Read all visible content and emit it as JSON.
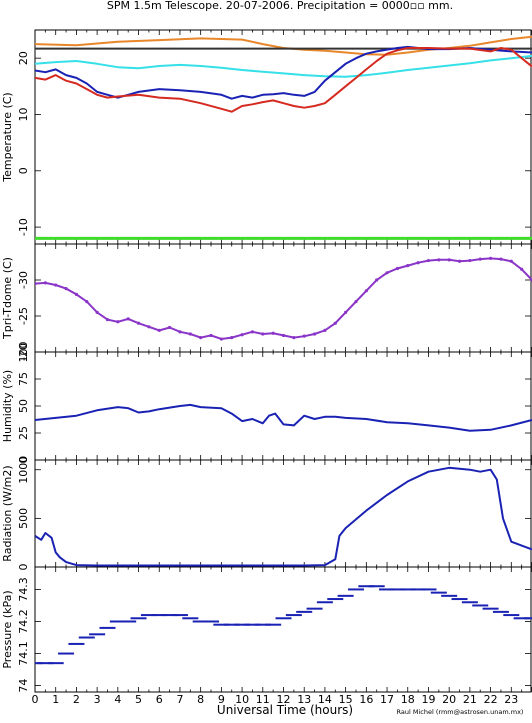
{
  "title": "SPM 1.5m Telescope. 20-07-2006. Precipitation = 0000▫▫ mm.",
  "credit": "Raul Michel (rmm@astrosen.unam.mx)",
  "colors": {
    "orange": "#e8862a",
    "black": "#333333",
    "cyan": "#35e0e8",
    "blue": "#1a22b4",
    "red": "#d52a20",
    "green": "#3fdc2c",
    "purple": "#8a35c8"
  },
  "chart_data": [
    {
      "type": "line",
      "ylabel": "Temperature (C)",
      "xlim": [
        0,
        24
      ],
      "ylim": [
        -13,
        25
      ],
      "yticks": [
        -10,
        0,
        10,
        20
      ],
      "series": [
        {
          "color": "#e8862a",
          "x": [
            0,
            2,
            4,
            6,
            8,
            10,
            11,
            12,
            13,
            14,
            15,
            16,
            17,
            18,
            19,
            20,
            21,
            22,
            23,
            24
          ],
          "y": [
            22.5,
            22.3,
            22.9,
            23.2,
            23.5,
            23.3,
            22.5,
            21.8,
            21.5,
            21.3,
            21.0,
            20.7,
            20.6,
            21.0,
            21.5,
            21.8,
            22.2,
            22.8,
            23.4,
            23.8
          ]
        },
        {
          "color": "#333333",
          "x": [
            0,
            24
          ],
          "y": [
            21.7,
            21.7
          ]
        },
        {
          "color": "#35e0e8",
          "x": [
            0,
            1,
            2,
            3,
            4,
            5,
            6,
            7,
            8,
            9,
            10,
            11,
            12,
            13,
            14,
            15,
            16,
            17,
            18,
            19,
            20,
            21,
            22,
            23,
            24
          ],
          "y": [
            19.0,
            19.3,
            19.5,
            19.0,
            18.4,
            18.2,
            18.6,
            18.8,
            18.6,
            18.3,
            17.9,
            17.6,
            17.3,
            17.0,
            16.8,
            16.7,
            17.0,
            17.4,
            17.9,
            18.3,
            18.7,
            19.1,
            19.6,
            20.0,
            20.4
          ]
        },
        {
          "color": "#1a22b4",
          "x": [
            0,
            0.5,
            1,
            1.5,
            2,
            2.5,
            3,
            3.5,
            4,
            4.5,
            5,
            6,
            7,
            8,
            9,
            9.5,
            10,
            10.5,
            11,
            11.5,
            12,
            12.5,
            13,
            13.5,
            14,
            14.5,
            15,
            15.5,
            16,
            16.5,
            17,
            17.5,
            18,
            19,
            20,
            21,
            22,
            23,
            24
          ],
          "y": [
            17.8,
            17.5,
            18.0,
            17.0,
            16.5,
            15.5,
            14.0,
            13.5,
            13.0,
            13.5,
            14.0,
            14.5,
            14.3,
            14.0,
            13.5,
            12.8,
            13.3,
            13.0,
            13.5,
            13.6,
            13.8,
            13.5,
            13.3,
            14.0,
            16.0,
            17.5,
            19.0,
            20.0,
            20.8,
            21.2,
            21.5,
            21.8,
            22.0,
            21.6,
            21.6,
            21.8,
            21.5,
            21.2,
            21.0
          ]
        },
        {
          "color": "#d52a20",
          "x": [
            0,
            0.5,
            1,
            1.5,
            2,
            2.5,
            3,
            3.5,
            4,
            5,
            6,
            7,
            8,
            9,
            9.5,
            10,
            10.5,
            11,
            11.5,
            12,
            12.5,
            13,
            13.5,
            14,
            14.5,
            15,
            15.5,
            16,
            16.5,
            17,
            17.5,
            18,
            19,
            20,
            21,
            22,
            22.5,
            23,
            24
          ],
          "y": [
            16.5,
            16.2,
            17.0,
            16.0,
            15.5,
            14.5,
            13.5,
            13.0,
            13.2,
            13.5,
            13.0,
            12.8,
            12.0,
            11.0,
            10.5,
            11.5,
            11.8,
            12.2,
            12.5,
            12.0,
            11.5,
            11.2,
            11.5,
            12.0,
            13.5,
            15.0,
            16.5,
            18.0,
            19.5,
            20.8,
            21.4,
            21.8,
            21.8,
            21.7,
            21.7,
            21.2,
            21.8,
            21.5,
            18.5
          ]
        },
        {
          "color": "#3fdc2c",
          "x": [
            0,
            24
          ],
          "y": [
            -12.0,
            -12.0
          ]
        }
      ]
    },
    {
      "type": "scatter",
      "ylabel": "Tpri-Tdome (C)",
      "xlim": [
        0,
        24
      ],
      "ylim": [
        -20,
        -35
      ],
      "yticks": [
        -20,
        -25,
        -30
      ],
      "series": [
        {
          "color": "#8a35c8",
          "x": [
            0,
            0.5,
            1,
            1.5,
            2,
            2.5,
            3,
            3.5,
            4,
            4.5,
            5,
            5.5,
            6,
            6.5,
            7,
            7.5,
            8,
            8.5,
            9,
            9.5,
            10,
            10.5,
            11,
            11.5,
            12,
            12.5,
            13,
            13.5,
            14,
            14.5,
            15,
            15.5,
            16,
            16.5,
            17,
            17.5,
            18,
            18.5,
            19,
            19.5,
            20,
            20.5,
            21,
            21.5,
            22,
            22.5,
            23,
            23.5,
            24
          ],
          "y": [
            -29.5,
            -29.6,
            -29.3,
            -28.8,
            -28.0,
            -27.0,
            -25.5,
            -24.5,
            -24.2,
            -24.6,
            -24.0,
            -23.5,
            -23.0,
            -23.4,
            -22.8,
            -22.5,
            -22.0,
            -22.3,
            -21.8,
            -22.0,
            -22.4,
            -22.8,
            -22.5,
            -22.6,
            -22.3,
            -22.0,
            -22.2,
            -22.5,
            -23.0,
            -24.0,
            -25.5,
            -27.0,
            -28.5,
            -30.0,
            -31.0,
            -31.6,
            -32.0,
            -32.4,
            -32.7,
            -32.8,
            -32.8,
            -32.6,
            -32.7,
            -32.9,
            -33.0,
            -32.9,
            -32.6,
            -31.5,
            -30.0
          ]
        }
      ]
    },
    {
      "type": "line",
      "ylabel": "Humidity (%)",
      "xlim": [
        0,
        24
      ],
      "ylim": [
        0,
        100
      ],
      "yticks": [
        0,
        25,
        50,
        75,
        100
      ],
      "series": [
        {
          "color": "#1a22b4",
          "x": [
            0,
            1,
            2,
            3,
            4,
            4.5,
            5,
            5.5,
            6,
            7,
            7.5,
            8,
            9,
            9.5,
            10,
            10.5,
            11,
            11.3,
            11.6,
            12,
            12.5,
            13,
            13.5,
            14,
            14.5,
            15,
            16,
            17,
            18,
            19,
            20,
            21,
            22,
            23,
            24
          ],
          "y": [
            37,
            39,
            41,
            46,
            49,
            48,
            44,
            45,
            47,
            50,
            51,
            49,
            48,
            43,
            36,
            38,
            34,
            41,
            43,
            33,
            32,
            41,
            38,
            40,
            40,
            39,
            38,
            35,
            34,
            32,
            30,
            27,
            28,
            32,
            37
          ]
        }
      ]
    },
    {
      "type": "line",
      "ylabel": "Radiation (W/m2)",
      "xlim": [
        0,
        24
      ],
      "ylim": [
        0,
        1100
      ],
      "yticks": [
        0,
        500,
        1000
      ],
      "series": [
        {
          "color": "#1a22b4",
          "x": [
            0,
            0.3,
            0.5,
            0.8,
            1.0,
            1.2,
            1.5,
            2,
            3,
            5,
            7,
            9,
            11,
            13,
            14,
            14.5,
            14.7,
            15,
            16,
            17,
            18,
            19,
            20,
            20.5,
            21,
            21.5,
            22,
            22.3,
            22.6,
            23,
            24
          ],
          "y": [
            320,
            280,
            350,
            300,
            150,
            100,
            50,
            20,
            15,
            15,
            15,
            15,
            15,
            15,
            20,
            80,
            320,
            400,
            580,
            740,
            880,
            980,
            1020,
            1010,
            1000,
            980,
            1000,
            900,
            500,
            260,
            180
          ]
        }
      ]
    },
    {
      "type": "scatter",
      "ylabel": "Pressure (kPa)",
      "xlim": [
        0,
        24
      ],
      "ylim": [
        73.98,
        74.37
      ],
      "yticks": [
        74,
        74.1,
        74.2,
        74.3
      ],
      "series": [
        {
          "color": "#1a22b4",
          "x": [
            0,
            0.5,
            1,
            1.5,
            2,
            2.5,
            3,
            3.5,
            4,
            4.5,
            5,
            5.5,
            6,
            6.5,
            7,
            7.5,
            8,
            8.5,
            9,
            9.5,
            10,
            10.5,
            11,
            11.5,
            12,
            12.5,
            13,
            13.5,
            14,
            14.5,
            15,
            15.5,
            16,
            16.5,
            17,
            17.5,
            18,
            18.5,
            19,
            19.5,
            20,
            20.5,
            21,
            21.5,
            22,
            22.5,
            23,
            23.5,
            24
          ],
          "y": [
            74.07,
            74.07,
            74.07,
            74.1,
            74.13,
            74.15,
            74.16,
            74.18,
            74.2,
            74.2,
            74.21,
            74.22,
            74.22,
            74.22,
            74.22,
            74.21,
            74.2,
            74.2,
            74.19,
            74.19,
            74.19,
            74.19,
            74.19,
            74.19,
            74.21,
            74.22,
            74.23,
            74.24,
            74.26,
            74.27,
            74.28,
            74.3,
            74.31,
            74.31,
            74.3,
            74.3,
            74.3,
            74.3,
            74.3,
            74.29,
            74.28,
            74.27,
            74.26,
            74.25,
            74.24,
            74.23,
            74.22,
            74.21,
            74.21
          ]
        }
      ]
    }
  ],
  "x_axis": {
    "label": "Universal Time (hours)",
    "tick_labels": [
      "0",
      "1",
      "2",
      "3",
      "4",
      "5",
      "6",
      "7",
      "8",
      "9",
      "10",
      "11",
      "12",
      "13",
      "14",
      "15",
      "16",
      "17",
      "18",
      "19",
      "20",
      "21",
      "22",
      "23"
    ]
  }
}
